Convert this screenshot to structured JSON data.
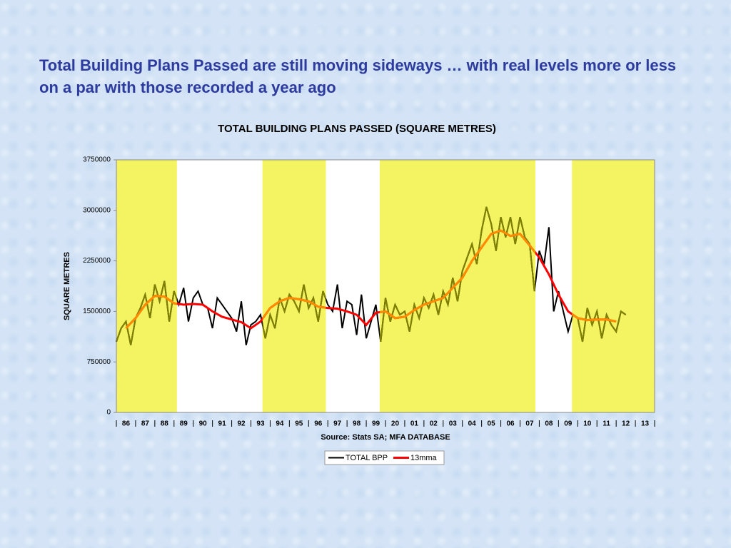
{
  "heading": "Total Building Plans Passed are still moving sideways … with real levels more or less on a par with those recorded a year ago",
  "chart_data": {
    "type": "line",
    "title": "TOTAL BUILDING PLANS PASSED (SQUARE METRES)",
    "y_label": "SQUARE METRES",
    "source": "Source: Stats SA; MFA DATABASE",
    "xlim": [
      1986,
      2014
    ],
    "xticks": [
      {
        "value": 1986,
        "label": "86"
      },
      {
        "value": 1987,
        "label": "87"
      },
      {
        "value": 1988,
        "label": "88"
      },
      {
        "value": 1989,
        "label": "89"
      },
      {
        "value": 1990,
        "label": "90"
      },
      {
        "value": 1991,
        "label": "91"
      },
      {
        "value": 1992,
        "label": "92"
      },
      {
        "value": 1993,
        "label": "93"
      },
      {
        "value": 1994,
        "label": "94"
      },
      {
        "value": 1995,
        "label": "95"
      },
      {
        "value": 1996,
        "label": "96"
      },
      {
        "value": 1997,
        "label": "97"
      },
      {
        "value": 1998,
        "label": "98"
      },
      {
        "value": 1999,
        "label": "99"
      },
      {
        "value": 2000,
        "label": "20"
      },
      {
        "value": 2001,
        "label": "01"
      },
      {
        "value": 2002,
        "label": "02"
      },
      {
        "value": 2003,
        "label": "03"
      },
      {
        "value": 2004,
        "label": "04"
      },
      {
        "value": 2005,
        "label": "05"
      },
      {
        "value": 2006,
        "label": "06"
      },
      {
        "value": 2007,
        "label": "07"
      },
      {
        "value": 2008,
        "label": "08"
      },
      {
        "value": 2009,
        "label": "09"
      },
      {
        "value": 2010,
        "label": "10"
      },
      {
        "value": 2011,
        "label": "11"
      },
      {
        "value": 2012,
        "label": "12"
      },
      {
        "value": 2013,
        "label": "13"
      }
    ],
    "ylim": [
      0,
      3750000
    ],
    "yticks": [
      0,
      750000,
      1500000,
      2250000,
      3000000,
      3750000
    ],
    "shaded_periods": [
      [
        1986,
        1989.15
      ],
      [
        1993.6,
        1996.9
      ],
      [
        1999.7,
        2007.8
      ],
      [
        2009.7,
        2014
      ]
    ],
    "shade_color": "#f4f462",
    "series": [
      {
        "name": "TOTAL BPP",
        "color": "#000000",
        "highlight_color": "#808000",
        "x": [
          1986,
          1986.25,
          1986.5,
          1986.75,
          1987,
          1987.25,
          1987.5,
          1987.75,
          1988,
          1988.25,
          1988.5,
          1988.75,
          1989,
          1989.25,
          1989.5,
          1989.75,
          1990,
          1990.25,
          1990.5,
          1990.75,
          1991,
          1991.25,
          1991.5,
          1991.75,
          1992,
          1992.25,
          1992.5,
          1992.75,
          1993,
          1993.25,
          1993.5,
          1993.75,
          1994,
          1994.25,
          1994.5,
          1994.75,
          1995,
          1995.25,
          1995.5,
          1995.75,
          1996,
          1996.25,
          1996.5,
          1996.75,
          1997,
          1997.25,
          1997.5,
          1997.75,
          1998,
          1998.25,
          1998.5,
          1998.75,
          1999,
          1999.25,
          1999.5,
          1999.75,
          2000,
          2000.25,
          2000.5,
          2000.75,
          2001,
          2001.25,
          2001.5,
          2001.75,
          2002,
          2002.25,
          2002.5,
          2002.75,
          2003,
          2003.25,
          2003.5,
          2003.75,
          2004,
          2004.25,
          2004.5,
          2004.75,
          2005,
          2005.25,
          2005.5,
          2005.75,
          2006,
          2006.25,
          2006.5,
          2006.75,
          2007,
          2007.25,
          2007.5,
          2007.75,
          2008,
          2008.25,
          2008.5,
          2008.75,
          2009,
          2009.25,
          2009.5,
          2009.75,
          2010,
          2010.25,
          2010.5,
          2010.75,
          2011,
          2011.25,
          2011.5,
          2011.75,
          2012,
          2012.25,
          2012.5
        ],
        "values": [
          1050000,
          1250000,
          1350000,
          1000000,
          1400000,
          1550000,
          1750000,
          1400000,
          1900000,
          1650000,
          1950000,
          1350000,
          1800000,
          1600000,
          1850000,
          1350000,
          1700000,
          1800000,
          1600000,
          1550000,
          1250000,
          1700000,
          1600000,
          1500000,
          1400000,
          1200000,
          1650000,
          1000000,
          1300000,
          1350000,
          1450000,
          1100000,
          1450000,
          1250000,
          1700000,
          1500000,
          1750000,
          1650000,
          1500000,
          1900000,
          1550000,
          1700000,
          1350000,
          1800000,
          1600000,
          1500000,
          1900000,
          1250000,
          1650000,
          1600000,
          1150000,
          1750000,
          1100000,
          1350000,
          1600000,
          1050000,
          1700000,
          1350000,
          1600000,
          1450000,
          1500000,
          1200000,
          1600000,
          1400000,
          1700000,
          1550000,
          1750000,
          1450000,
          1800000,
          1600000,
          2000000,
          1650000,
          2100000,
          2300000,
          2500000,
          2200000,
          2700000,
          3050000,
          2800000,
          2400000,
          2900000,
          2600000,
          2900000,
          2500000,
          2900000,
          2600000,
          2500000,
          1800000,
          2400000,
          2200000,
          2750000,
          1500000,
          1800000,
          1500000,
          1200000,
          1450000,
          1400000,
          1050000,
          1550000,
          1300000,
          1500000,
          1100000,
          1450000,
          1300000,
          1200000,
          1500000,
          1450000
        ]
      },
      {
        "name": "13mma",
        "color": "#ff0000",
        "highlight_color": "#ff8c00",
        "x": [
          1986.5,
          1987,
          1987.5,
          1988,
          1988.5,
          1989,
          1989.5,
          1990,
          1990.5,
          1991,
          1991.5,
          1992,
          1992.5,
          1993,
          1993.5,
          1994,
          1994.5,
          1995,
          1995.5,
          1996,
          1996.5,
          1997,
          1997.5,
          1998,
          1998.5,
          1999,
          1999.5,
          2000,
          2000.5,
          2001,
          2001.5,
          2002,
          2002.5,
          2003,
          2003.5,
          2004,
          2004.5,
          2005,
          2005.5,
          2006,
          2006.5,
          2007,
          2007.5,
          2008,
          2008.5,
          2009,
          2009.5,
          2010,
          2010.5,
          2011,
          2011.5,
          2012
        ],
        "values": [
          1250000,
          1400000,
          1600000,
          1730000,
          1720000,
          1620000,
          1600000,
          1610000,
          1600000,
          1500000,
          1420000,
          1380000,
          1340000,
          1250000,
          1350000,
          1550000,
          1650000,
          1700000,
          1680000,
          1650000,
          1570000,
          1550000,
          1540000,
          1500000,
          1450000,
          1300000,
          1480000,
          1500000,
          1400000,
          1420000,
          1520000,
          1600000,
          1650000,
          1700000,
          1850000,
          2000000,
          2250000,
          2450000,
          2650000,
          2700000,
          2620000,
          2650000,
          2480000,
          2300000,
          2050000,
          1750000,
          1500000,
          1400000,
          1370000,
          1380000,
          1380000,
          1350000
        ]
      }
    ]
  }
}
